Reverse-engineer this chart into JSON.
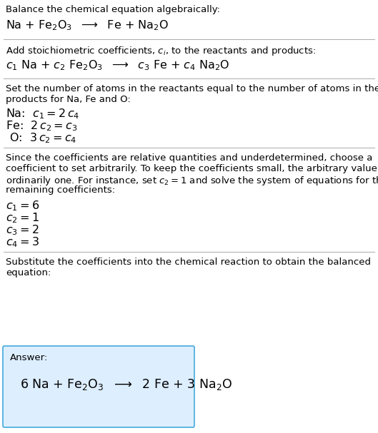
{
  "bg_color": "#ffffff",
  "text_color": "#000000",
  "section1_title": "Balance the chemical equation algebraically:",
  "section1_eq": "Na + Fe$_2$O$_3$  $\\longrightarrow$  Fe + Na$_2$O",
  "section2_title": "Add stoichiometric coefficients, $c_i$, to the reactants and products:",
  "section2_eq": "$c_1$ Na + $c_2$ Fe$_2$O$_3$  $\\longrightarrow$  $c_3$ Fe + $c_4$ Na$_2$O",
  "section3_title_line1": "Set the number of atoms in the reactants equal to the number of atoms in the",
  "section3_title_line2": "products for Na, Fe and O:",
  "section3_eqs": [
    "Na:  $c_1 = 2\\,c_4$",
    "Fe:  $2\\,c_2 = c_3$",
    " O:  $3\\,c_2 = c_4$"
  ],
  "section4_title_line1": "Since the coefficients are relative quantities and underdetermined, choose a",
  "section4_title_line2": "coefficient to set arbitrarily. To keep the coefficients small, the arbitrary value is",
  "section4_title_line3": "ordinarily one. For instance, set $c_2 = 1$ and solve the system of equations for the",
  "section4_title_line4": "remaining coefficients:",
  "section4_eqs": [
    "$c_1 = 6$",
    "$c_2 = 1$",
    "$c_3 = 2$",
    "$c_4 = 3$"
  ],
  "section5_title_line1": "Substitute the coefficients into the chemical reaction to obtain the balanced",
  "section5_title_line2": "equation:",
  "section5_answer_label": "Answer:",
  "section5_answer_eq": "6 Na + Fe$_2$O$_3$  $\\longrightarrow$  2 Fe + 3 Na$_2$O",
  "answer_box_facecolor": "#ddeeff",
  "answer_box_edgecolor": "#44aadd",
  "divider_color": "#aaaaaa",
  "fs_body": 9.5,
  "fs_eq": 11.5,
  "fs_ans_eq": 12.5
}
